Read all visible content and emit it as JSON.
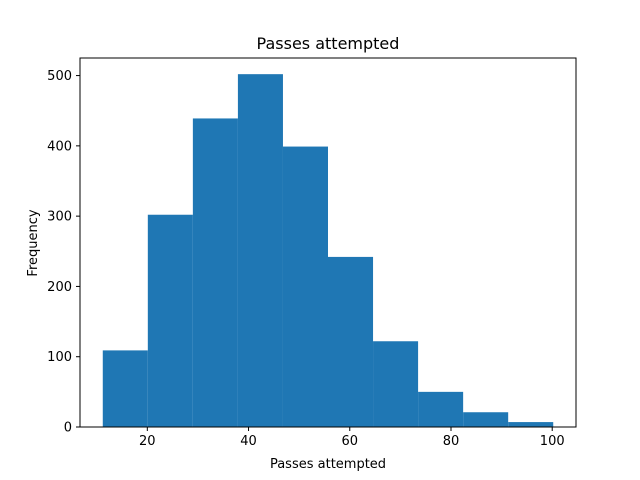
{
  "chart_data": {
    "type": "bar",
    "title": "Passes attempted",
    "xlabel": "Passes attempted",
    "ylabel": "Frequency",
    "color": "#1f77b4",
    "bin_edges": [
      11.2,
      20.1,
      29.0,
      37.9,
      46.8,
      55.7,
      64.6,
      73.5,
      82.4,
      91.3,
      100.2
    ],
    "values": [
      109,
      302,
      439,
      502,
      399,
      242,
      122,
      50,
      21,
      7
    ],
    "xlim": [
      6.7,
      104.7
    ],
    "ylim": [
      0,
      525
    ],
    "xticks": [
      20,
      40,
      60,
      80,
      100
    ],
    "yticks": [
      0,
      100,
      200,
      300,
      400,
      500
    ],
    "grid": false
  }
}
